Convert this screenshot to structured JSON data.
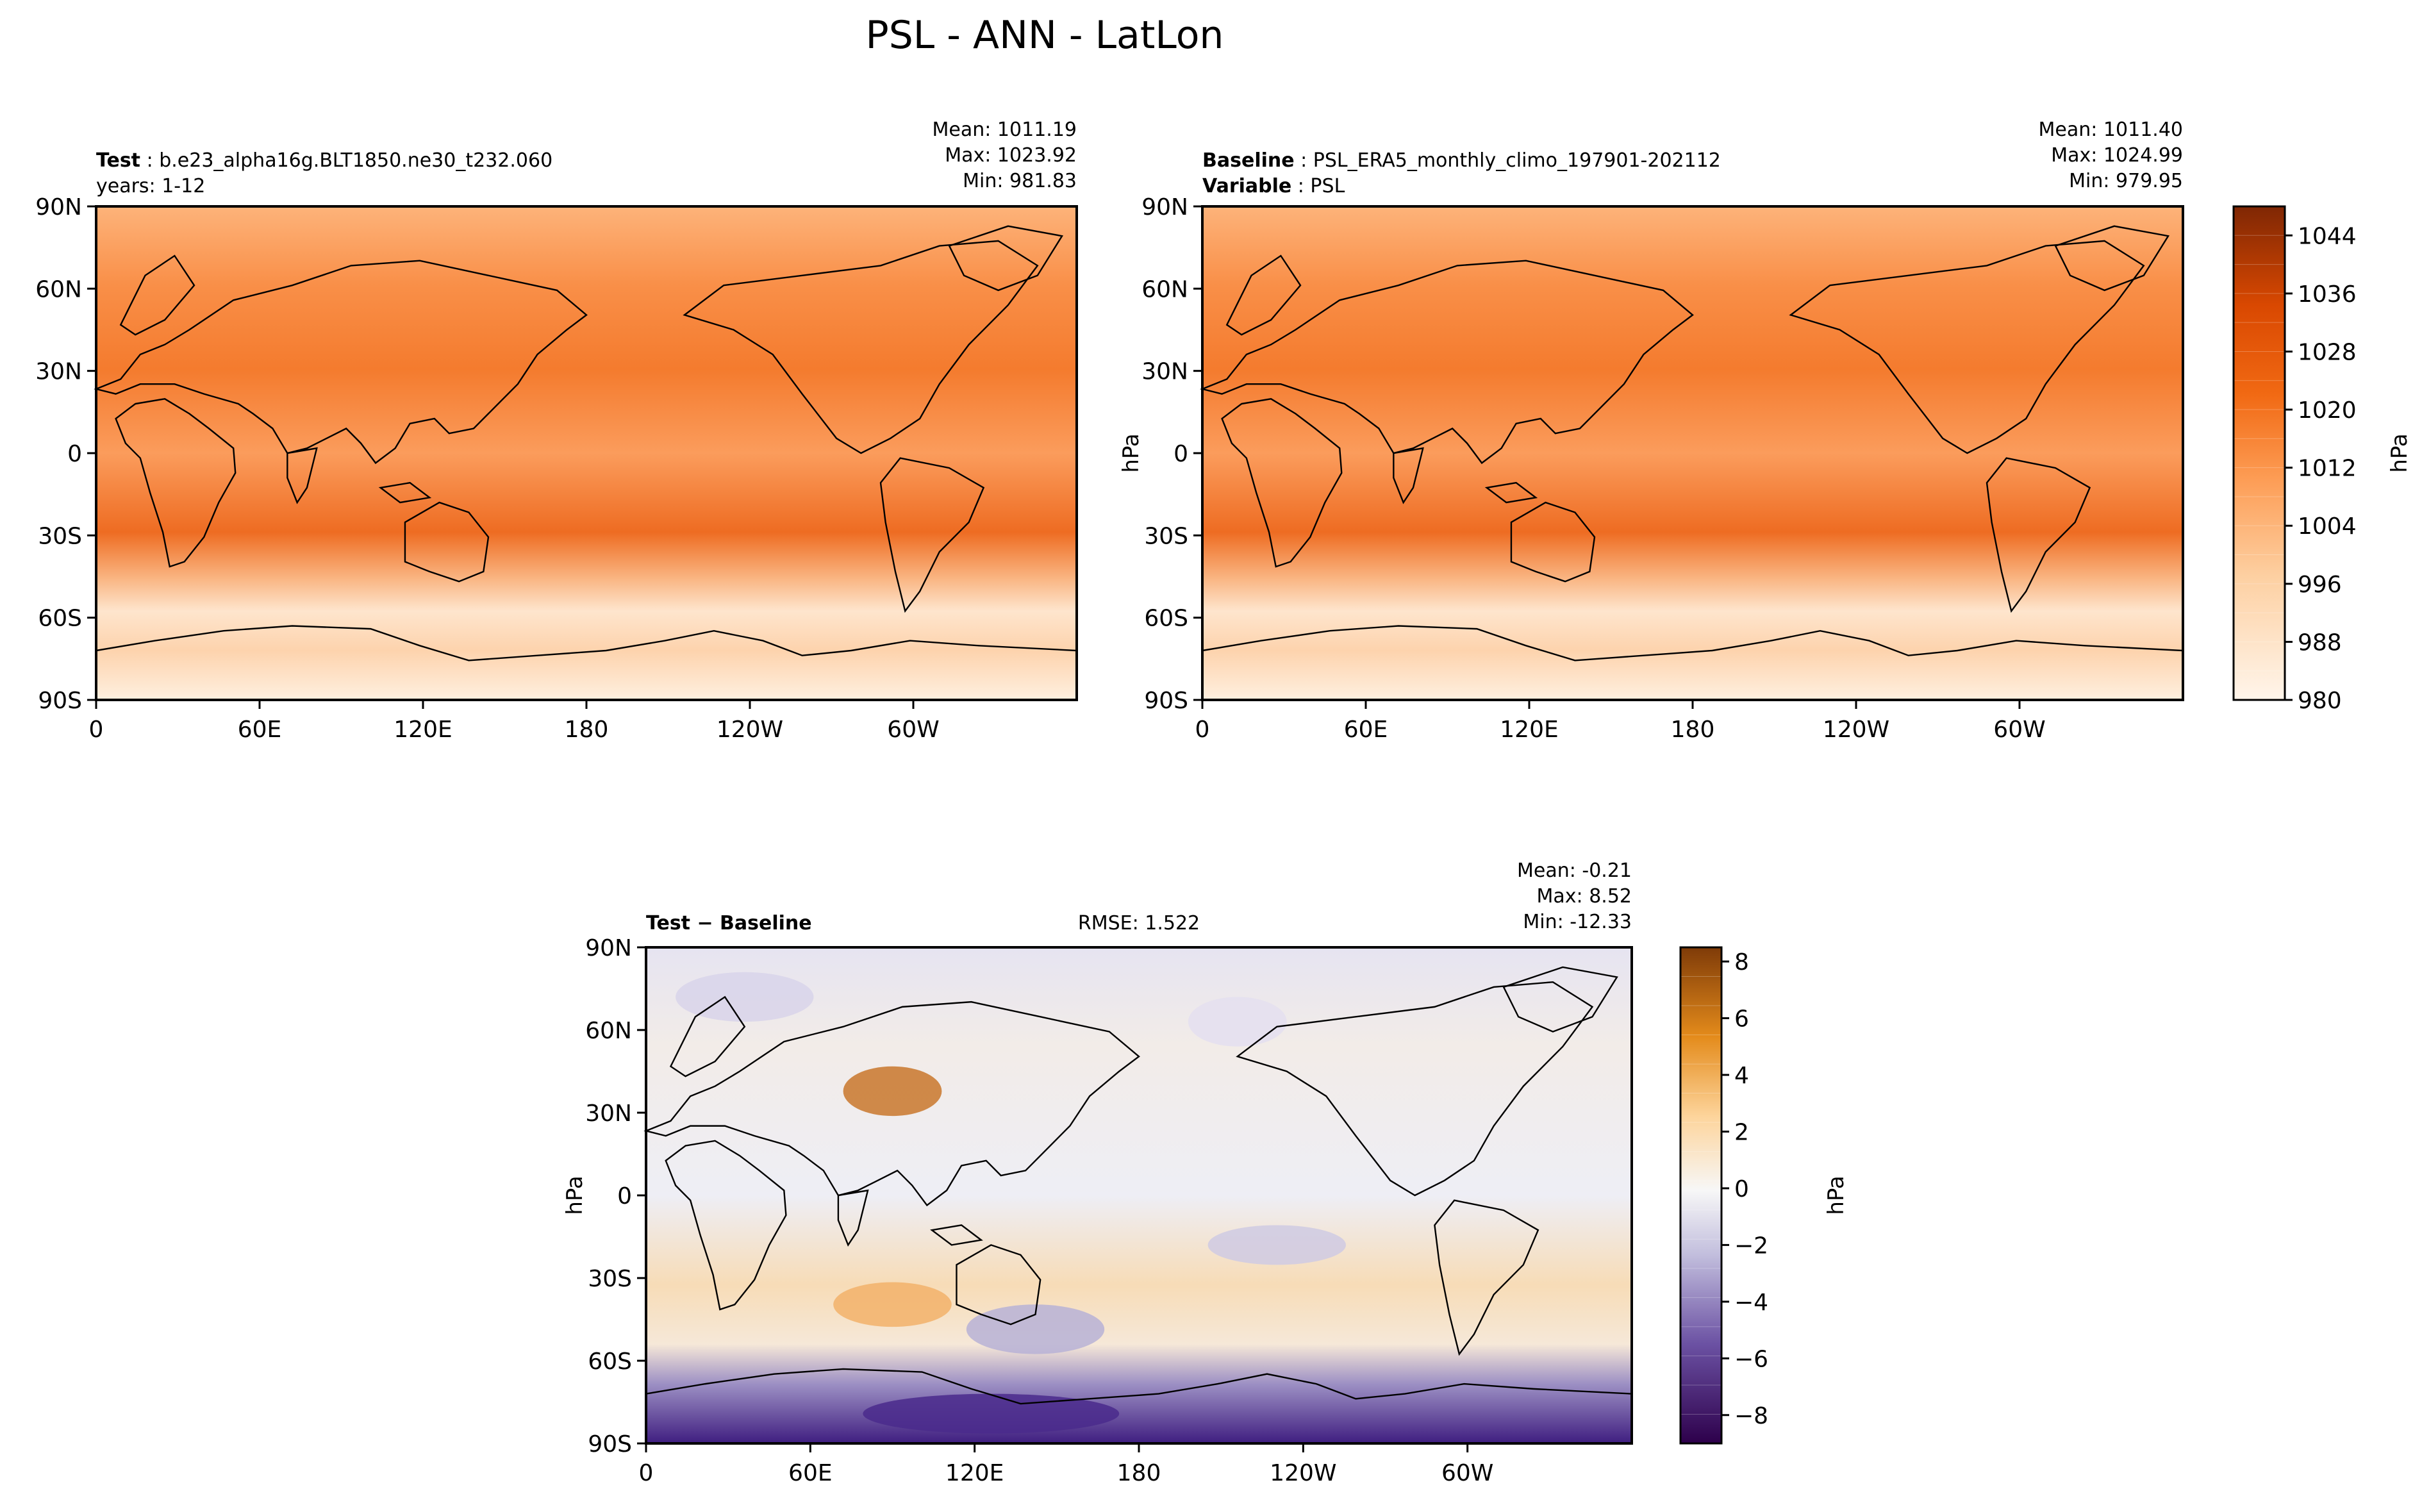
{
  "figure": {
    "title": "PSL - ANN - LatLon"
  },
  "chart_data": [
    {
      "type": "heatmap",
      "id": "test",
      "label_bold": "Test",
      "label_text": "b.e23_alpha16g.BLT1850.ne30_t232.060",
      "label_line2": "years: 1-12",
      "stats": [
        "Mean: 1011.19",
        "Max: 1023.92",
        "Min: 981.83"
      ],
      "x_ticks": [
        "0",
        "60E",
        "120E",
        "180",
        "120W",
        "60W"
      ],
      "y_ticks": [
        "90N",
        "60N",
        "30N",
        "0",
        "30S",
        "60S",
        "90S"
      ],
      "ylabel": "",
      "xlim": [
        0,
        360
      ],
      "ylim": [
        -90,
        90
      ]
    },
    {
      "type": "heatmap",
      "id": "baseline",
      "label_bold": "Baseline",
      "label_text": "PSL_ERA5_monthly_climo_197901-202112",
      "label2_bold": "Variable",
      "label2_text": "PSL",
      "stats": [
        "Mean: 1011.40",
        "Max: 1024.99",
        "Min: 979.95"
      ],
      "x_ticks": [
        "0",
        "60E",
        "120E",
        "180",
        "120W",
        "60W"
      ],
      "y_ticks": [
        "90N",
        "60N",
        "30N",
        "0",
        "30S",
        "60S",
        "90S"
      ],
      "ylabel": "hPa",
      "xlim": [
        0,
        360
      ],
      "ylim": [
        -90,
        90
      ],
      "colorbar": {
        "label": "hPa",
        "ticks": [
          "1044",
          "1036",
          "1028",
          "1020",
          "1012",
          "1004",
          "996",
          "988",
          "980"
        ],
        "tick_values": [
          1044,
          1036,
          1028,
          1020,
          1012,
          1004,
          996,
          988,
          980
        ],
        "range": [
          980,
          1048
        ]
      }
    },
    {
      "type": "heatmap",
      "id": "diff",
      "label_bold": "Test − Baseline",
      "rmse": "RMSE: 1.522",
      "stats": [
        "Mean: -0.21",
        "Max:  8.52",
        "Min: -12.33"
      ],
      "x_ticks": [
        "0",
        "60E",
        "120E",
        "180",
        "120W",
        "60W"
      ],
      "y_ticks": [
        "90N",
        "60N",
        "30N",
        "0",
        "30S",
        "60S",
        "90S"
      ],
      "ylabel": "hPa",
      "xlim": [
        0,
        360
      ],
      "ylim": [
        -90,
        90
      ],
      "colorbar": {
        "label": "hPa",
        "ticks": [
          "8",
          "6",
          "4",
          "2",
          "0",
          "−2",
          "−4",
          "−6",
          "−8"
        ],
        "tick_values": [
          8,
          6,
          4,
          2,
          0,
          -2,
          -4,
          -6,
          -8
        ],
        "range": [
          -9,
          8.5
        ]
      }
    }
  ],
  "colors": {
    "psl_high": "#7f2704",
    "psl_mid": "#f16913",
    "psl_low": "#fff5eb",
    "diff_pos": "#7f3b08",
    "diff_zero": "#f7f7f7",
    "diff_neg": "#2d004b"
  }
}
